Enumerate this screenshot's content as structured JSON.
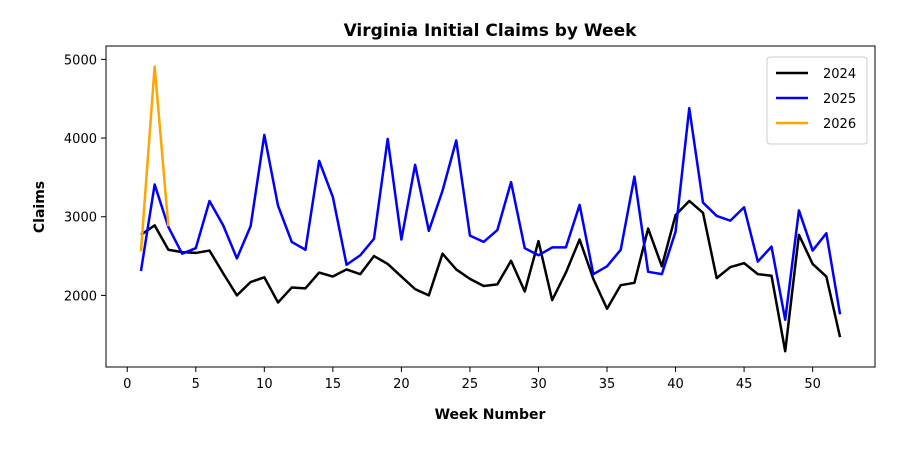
{
  "chart_data": {
    "type": "line",
    "title": "Virginia Initial Claims by Week",
    "xlabel": "Week Number",
    "ylabel": "Claims",
    "xlim": [
      -1.55,
      54.55
    ],
    "ylim": [
      1090,
      5170
    ],
    "xticks": [
      0,
      5,
      10,
      15,
      20,
      25,
      30,
      35,
      40,
      45,
      50
    ],
    "yticks": [
      2000,
      3000,
      4000,
      5000
    ],
    "grid": false,
    "legend_position": "top-right",
    "series": [
      {
        "name": "2024",
        "color": "#000000",
        "x": [
          1,
          2,
          3,
          4,
          5,
          6,
          7,
          8,
          9,
          10,
          11,
          12,
          13,
          14,
          15,
          16,
          17,
          18,
          19,
          20,
          21,
          22,
          23,
          24,
          25,
          26,
          27,
          28,
          29,
          30,
          31,
          32,
          33,
          34,
          35,
          36,
          37,
          38,
          39,
          40,
          41,
          42,
          43,
          44,
          45,
          46,
          47,
          48,
          49,
          50,
          51,
          52
        ],
        "y": [
          2770,
          2890,
          2580,
          2550,
          2540,
          2570,
          2280,
          2000,
          2170,
          2230,
          1910,
          2100,
          2090,
          2290,
          2240,
          2330,
          2270,
          2500,
          2400,
          2240,
          2080,
          2000,
          2530,
          2330,
          2210,
          2120,
          2140,
          2440,
          2050,
          2690,
          1940,
          2290,
          2710,
          2210,
          1830,
          2130,
          2160,
          2850,
          2370,
          3020,
          3200,
          3050,
          2220,
          2360,
          2410,
          2270,
          2250,
          1290,
          2770,
          2400,
          2240,
          1470
        ]
      },
      {
        "name": "2025",
        "color": "#0000ff",
        "x": [
          1,
          2,
          3,
          4,
          5,
          6,
          7,
          8,
          9,
          10,
          11,
          12,
          13,
          14,
          15,
          16,
          17,
          18,
          19,
          20,
          21,
          22,
          23,
          24,
          25,
          26,
          27,
          28,
          29,
          30,
          31,
          32,
          33,
          34,
          35,
          36,
          37,
          38,
          39,
          40,
          41,
          42,
          43,
          44,
          45,
          46,
          47,
          48,
          49,
          50,
          51,
          52
        ],
        "y": [
          2310,
          3410,
          2870,
          2530,
          2600,
          3200,
          2890,
          2470,
          2880,
          4040,
          3140,
          2680,
          2580,
          3710,
          3250,
          2390,
          2510,
          2720,
          3990,
          2710,
          3660,
          2820,
          3330,
          3970,
          2760,
          2680,
          2830,
          3440,
          2600,
          2510,
          2610,
          2610,
          3150,
          2270,
          2370,
          2580,
          3510,
          2300,
          2270,
          2810,
          4380,
          3180,
          3010,
          2950,
          3120,
          2430,
          2620,
          1690,
          3080,
          2570,
          2790,
          1760
        ]
      },
      {
        "name": "2026",
        "color": "#ffa500",
        "x": [
          1,
          2,
          3
        ],
        "y": [
          2560,
          4910,
          2880
        ]
      }
    ]
  }
}
